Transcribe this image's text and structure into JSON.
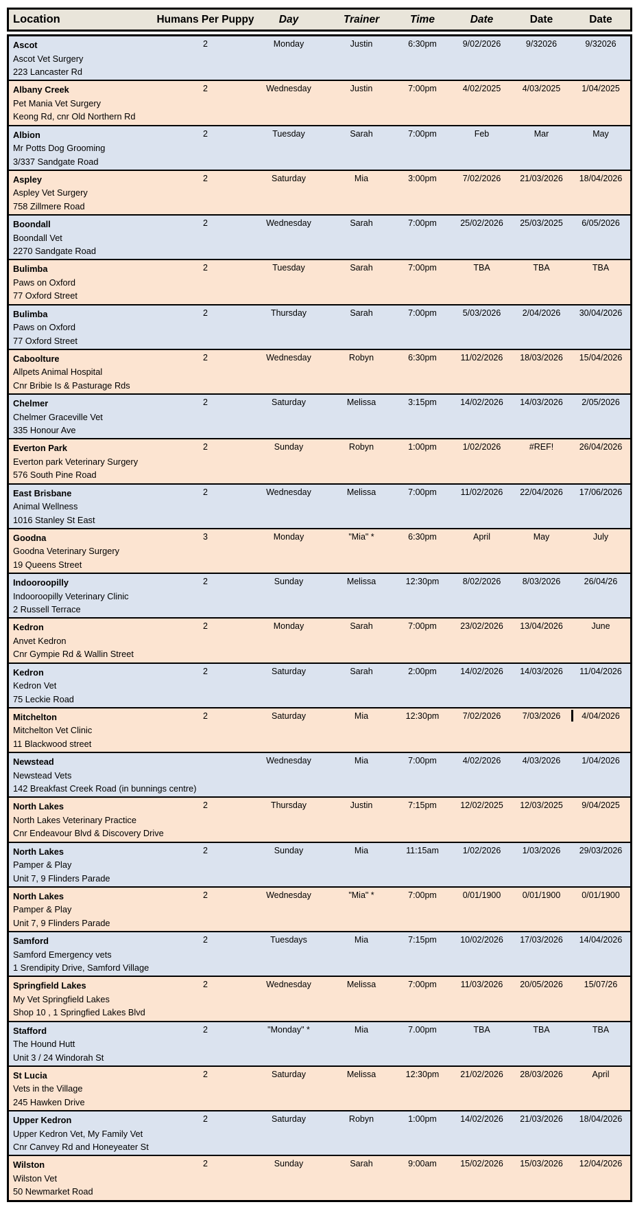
{
  "colors": {
    "page_bg": "#ffffff",
    "header_bg": "#e9e5da",
    "row_blue": "#dbe3ef",
    "row_peach": "#fce4d1",
    "border": "#000000"
  },
  "table": {
    "columns": [
      {
        "label": "Location"
      },
      {
        "label": "Humans Per Puppy"
      },
      {
        "label": "Day"
      },
      {
        "label": "Trainer"
      },
      {
        "label": "Time"
      },
      {
        "label": "Date"
      },
      {
        "label": "Date"
      },
      {
        "label": "Date"
      }
    ],
    "rows": [
      {
        "location": "Ascot",
        "venue": "Ascot Vet Surgery",
        "address": "223 Lancaster Rd",
        "humans_per_puppy": "2",
        "day": "Monday",
        "trainer": "Justin",
        "time": "6:30pm",
        "dates": [
          "9/02/2026",
          "9/32026",
          "9/32026"
        ]
      },
      {
        "location": "Albany Creek",
        "venue": "Pet Mania Vet Surgery",
        "address": "Keong Rd, cnr Old Northern Rd",
        "humans_per_puppy": "2",
        "day": "Wednesday",
        "trainer": "Justin",
        "time": "7:00pm",
        "dates": [
          "4/02/2025",
          "4/03/2025",
          "1/04/2025"
        ]
      },
      {
        "location": "Albion",
        "venue": "Mr Potts Dog Grooming",
        "address": "3/337 Sandgate Road",
        "humans_per_puppy": "2",
        "day": "Tuesday",
        "trainer": "Sarah",
        "time": "7:00pm",
        "dates": [
          "Feb",
          "Mar",
          "May"
        ]
      },
      {
        "location": "Aspley",
        "venue": "Aspley Vet Surgery",
        "address": "758 Zillmere Road",
        "humans_per_puppy": "2",
        "day": "Saturday",
        "trainer": "Mia",
        "time": "3:00pm",
        "dates": [
          "7/02/2026",
          "21/03/2026",
          "18/04/2026"
        ]
      },
      {
        "location": "Boondall",
        "venue": "Boondall Vet",
        "address": "2270 Sandgate Road",
        "humans_per_puppy": "2",
        "day": "Wednesday",
        "trainer": "Sarah",
        "time": "7:00pm",
        "dates": [
          "25/02/2026",
          "25/03/2025",
          "6/05/2026"
        ]
      },
      {
        "location": "Bulimba",
        "venue": "Paws on Oxford",
        "address": "77 Oxford Street",
        "humans_per_puppy": "2",
        "day": "Tuesday",
        "trainer": "Sarah",
        "time": "7:00pm",
        "dates": [
          "TBA",
          "TBA",
          "TBA"
        ]
      },
      {
        "location": "Bulimba",
        "venue": "Paws on Oxford",
        "address": "77 Oxford Street",
        "humans_per_puppy": "2",
        "day": "Thursday",
        "trainer": "Sarah",
        "time": "7:00pm",
        "dates": [
          "5/03/2026",
          "2/04/2026",
          "30/04/2026"
        ]
      },
      {
        "location": "Caboolture",
        "venue": "Allpets Animal Hospital",
        "address": "Cnr Bribie Is & Pasturage Rds",
        "humans_per_puppy": "2",
        "day": "Wednesday",
        "trainer": "Robyn",
        "time": "6:30pm",
        "dates": [
          "11/02/2026",
          "18/03/2026",
          "15/04/2026"
        ]
      },
      {
        "location": "Chelmer",
        "venue": "Chelmer Graceville Vet",
        "address": "335 Honour Ave",
        "humans_per_puppy": "2",
        "day": "Saturday",
        "trainer": "Melissa",
        "time": "3:15pm",
        "dates": [
          "14/02/2026",
          "14/03/2026",
          "2/05/2026"
        ]
      },
      {
        "location": "Everton Park",
        "venue": "Everton park Veterinary Surgery",
        "address": "576 South Pine Road",
        "humans_per_puppy": "2",
        "day": "Sunday",
        "trainer": "Robyn",
        "time": "1:00pm",
        "dates": [
          "1/02/2026",
          "#REF!",
          "26/04/2026"
        ]
      },
      {
        "location": "East Brisbane",
        "venue": "Animal Wellness",
        "address": "1016 Stanley St East",
        "humans_per_puppy": "2",
        "day": "Wednesday",
        "trainer": "Melissa",
        "time": "7:00pm",
        "dates": [
          "11/02/2026",
          "22/04/2026",
          "17/06/2026"
        ]
      },
      {
        "location": "Goodna",
        "venue": "Goodna Veterinary Surgery",
        "address": "19 Queens Street",
        "humans_per_puppy": "3",
        "day": "Monday",
        "trainer": "\"Mia\" *",
        "time": "6:30pm",
        "dates": [
          "April",
          "May",
          "July"
        ]
      },
      {
        "location": "Indooroopilly",
        "venue": "Indooroopilly Veterinary Clinic",
        "address": "2 Russell Terrace",
        "humans_per_puppy": "2",
        "day": "Sunday",
        "trainer": "Melissa",
        "time": "12:30pm",
        "dates": [
          "8/02/2026",
          "8/03/2026",
          "26/04/26"
        ]
      },
      {
        "location": "Kedron",
        "venue": "Anvet Kedron",
        "address": "Cnr Gympie Rd & Wallin Street",
        "humans_per_puppy": "2",
        "day": "Monday",
        "trainer": "Sarah",
        "time": "7:00pm",
        "dates": [
          "23/02/2026",
          "13/04/2026",
          "June"
        ]
      },
      {
        "location": "Kedron",
        "venue": "Kedron Vet",
        "address": "75 Leckie Road",
        "humans_per_puppy": "2",
        "day": "Saturday",
        "trainer": "Sarah",
        "time": "2:00pm",
        "dates": [
          "14/02/2026",
          "14/03/2026",
          "11/04/2026"
        ]
      },
      {
        "location": "Mitchelton",
        "venue": "Mitchelton Vet Clinic",
        "address": "11 Blackwood street",
        "humans_per_puppy": "2",
        "day": "Saturday",
        "trainer": "Mia",
        "time": "12:30pm",
        "dates": [
          "7/02/2026",
          "7/03/2026",
          "4/04/2026"
        ],
        "text_cursor_before_date_3": true
      },
      {
        "location": "Newstead",
        "venue": "Newstead Vets",
        "address": "142 Breakfast Creek Road (in bunnings centre)",
        "humans_per_puppy": "",
        "day": "Wednesday",
        "trainer": "Mia",
        "time": "7:00pm",
        "dates": [
          "4/02/2026",
          "4/03/2026",
          "1/04/2026"
        ]
      },
      {
        "location": "North Lakes",
        "venue": "North Lakes Veterinary Practice",
        "address": "Cnr Endeavour Blvd & Discovery Drive",
        "humans_per_puppy": "2",
        "day": "Thursday",
        "trainer": "Justin",
        "time": "7:15pm",
        "dates": [
          "12/02/2025",
          "12/03/2025",
          "9/04/2025"
        ]
      },
      {
        "location": "North Lakes",
        "venue": "Pamper & Play",
        "address": "Unit 7, 9 Flinders Parade",
        "humans_per_puppy": "2",
        "day": "Sunday",
        "trainer": "Mia",
        "time": "11:15am",
        "dates": [
          "1/02/2026",
          "1/03/2026",
          "29/03/2026"
        ]
      },
      {
        "location": "North Lakes",
        "venue": "Pamper & Play",
        "address": "Unit 7, 9 Flinders Parade",
        "humans_per_puppy": "2",
        "day": "Wednesday",
        "trainer": "\"Mia\" *",
        "time": "7:00pm",
        "dates": [
          "0/01/1900",
          "0/01/1900",
          "0/01/1900"
        ]
      },
      {
        "location": "Samford",
        "venue": "Samford Emergency vets",
        "address": "1 Srendipity Drive, Samford Village",
        "humans_per_puppy": "2",
        "day": "Tuesdays",
        "trainer": "Mia",
        "time": "7:15pm",
        "dates": [
          "10/02/2026",
          "17/03/2026",
          "14/04/2026"
        ]
      },
      {
        "location": "Springfield Lakes",
        "venue": "My Vet Springfield Lakes",
        "address": "Shop 10 , 1 Springfied Lakes Blvd",
        "humans_per_puppy": "2",
        "day": "Wednesday",
        "trainer": "Melissa",
        "time": "7:00pm",
        "dates": [
          "11/03/2026",
          "20/05/2026",
          "15/07/26"
        ]
      },
      {
        "location": "Stafford",
        "venue": "The Hound Hutt",
        "address": "Unit 3 / 24 Windorah St",
        "humans_per_puppy": "2",
        "day": "\"Monday\" *",
        "trainer": "Mia",
        "time": "7.00pm",
        "dates": [
          "TBA",
          "TBA",
          "TBA"
        ]
      },
      {
        "location": "St Lucia",
        "venue": "Vets in the Village",
        "address": "245 Hawken Drive",
        "humans_per_puppy": "2",
        "day": "Saturday",
        "trainer": "Melissa",
        "time": "12:30pm",
        "dates": [
          "21/02/2026",
          "28/03/2026",
          "April"
        ]
      },
      {
        "location": "Upper Kedron",
        "venue": "Upper Kedron Vet, My Family Vet",
        "address": "Cnr Canvey Rd and Honeyeater St",
        "humans_per_puppy": "2",
        "day": "Saturday",
        "trainer": "Robyn",
        "time": "1:00pm",
        "dates": [
          "14/02/2026",
          "21/03/2026",
          "18/04/2026"
        ]
      },
      {
        "location": "Wilston",
        "venue": "Wilston Vet",
        "address": "50 Newmarket Road",
        "humans_per_puppy": "2",
        "day": "Sunday",
        "trainer": "Sarah",
        "time": "9:00am",
        "dates": [
          "15/02/2026",
          "15/03/2026",
          "12/04/2026"
        ]
      }
    ]
  }
}
